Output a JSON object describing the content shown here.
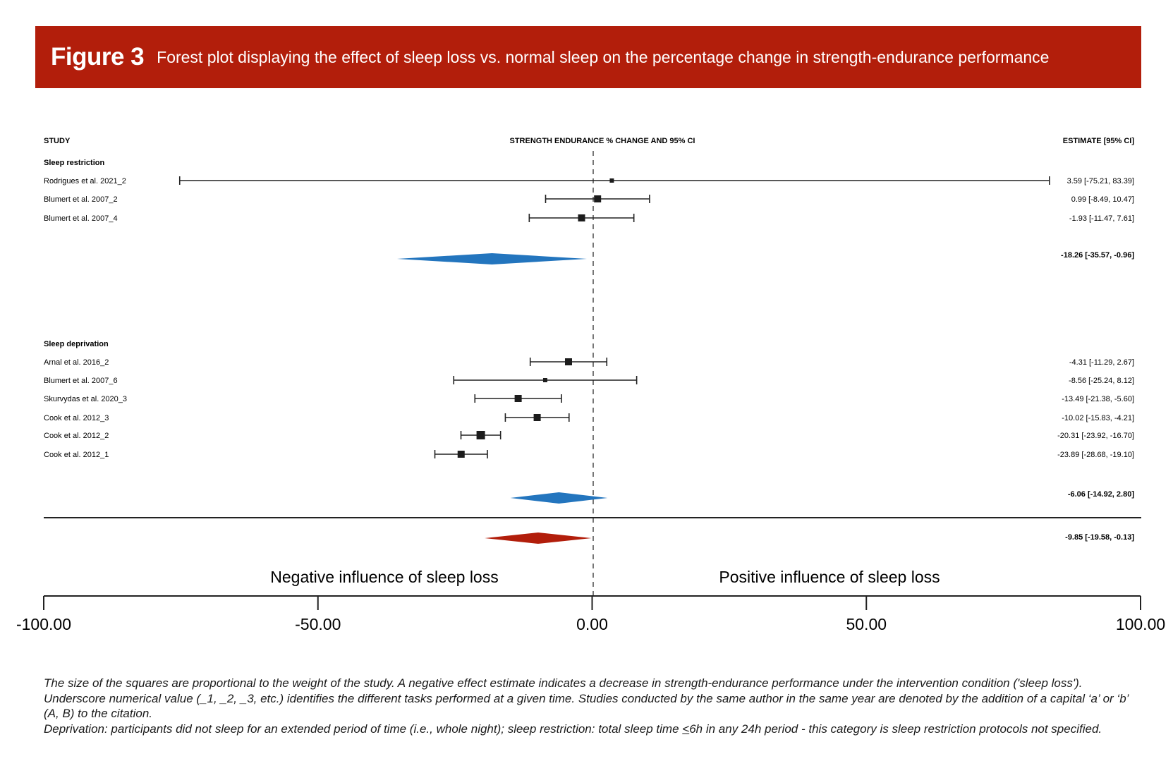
{
  "banner": {
    "figure_label": "Figure 3",
    "caption": "Forest plot displaying the effect of sleep loss vs. normal sleep on the percentage change in strength-endurance performance",
    "color": "#b21e0b"
  },
  "chart_data": {
    "type": "forest",
    "title": "Forest plot displaying the effect of sleep loss vs. normal sleep on the percentage change in strength-endurance performance",
    "column_headers": {
      "study": "STUDY",
      "plot": "STRENGTH ENDURANCE % CHANGE AND 95% CI",
      "estimate": "ESTIMATE [95% CI]"
    },
    "xlim": [
      -100,
      100
    ],
    "xticks": [
      -100,
      -50,
      0,
      50,
      100
    ],
    "xtick_labels": [
      "-100.00",
      "-50.00",
      "0.00",
      "50.00",
      "100.00"
    ],
    "reference_line": 0,
    "side_labels": {
      "left": "Negative influence of sleep loss",
      "right": "Positive influence of sleep loss"
    },
    "groups": [
      {
        "name": "Sleep restriction",
        "studies": [
          {
            "label": "Rodrigues et al. 2021_2",
            "estimate": 3.59,
            "ci_low": -75.21,
            "ci_high": 83.39,
            "text": "3.59 [-75.21, 83.39]",
            "weight": "small"
          },
          {
            "label": "Blumert et al. 2007_2",
            "estimate": 0.99,
            "ci_low": -8.49,
            "ci_high": 10.47,
            "text": "0.99 [-8.49, 10.47]",
            "weight": "medium"
          },
          {
            "label": "Blumert et al. 2007_4",
            "estimate": -1.93,
            "ci_low": -11.47,
            "ci_high": 7.61,
            "text": "-1.93 [-11.47, 7.61]",
            "weight": "medium"
          }
        ],
        "summary": {
          "estimate": -18.26,
          "ci_low": -35.57,
          "ci_high": -0.96,
          "text": "-18.26 [-35.57, -0.96]",
          "color": "#2375be"
        }
      },
      {
        "name": "Sleep deprivation",
        "studies": [
          {
            "label": "Arnal et al. 2016_2",
            "estimate": -4.31,
            "ci_low": -11.29,
            "ci_high": 2.67,
            "text": "-4.31 [-11.29, 2.67]",
            "weight": "medium"
          },
          {
            "label": "Blumert et al. 2007_6",
            "estimate": -8.56,
            "ci_low": -25.24,
            "ci_high": 8.12,
            "text": "-8.56 [-25.24, 8.12]",
            "weight": "small"
          },
          {
            "label": "Skurvydas et al. 2020_3",
            "estimate": -13.49,
            "ci_low": -21.38,
            "ci_high": -5.6,
            "text": "-13.49 [-21.38, -5.60]",
            "weight": "medium"
          },
          {
            "label": "Cook et al. 2012_3",
            "estimate": -10.02,
            "ci_low": -15.83,
            "ci_high": -4.21,
            "text": "-10.02 [-15.83, -4.21]",
            "weight": "medium"
          },
          {
            "label": "Cook et al. 2012_2",
            "estimate": -20.31,
            "ci_low": -23.92,
            "ci_high": -16.7,
            "text": "-20.31 [-23.92, -16.70]",
            "weight": "large"
          },
          {
            "label": "Cook et al. 2012_1",
            "estimate": -23.89,
            "ci_low": -28.68,
            "ci_high": -19.1,
            "text": "-23.89 [-28.68, -19.10]",
            "weight": "medium"
          }
        ],
        "summary": {
          "estimate": -6.06,
          "ci_low": -14.92,
          "ci_high": 2.8,
          "text": "-6.06 [-14.92, 2.80]",
          "color": "#2375be"
        }
      }
    ],
    "overall": {
      "estimate": -9.85,
      "ci_low": -19.58,
      "ci_high": -0.13,
      "text": "-9.85 [-19.58, -0.13]",
      "color": "#b21e0b"
    }
  },
  "footnote": {
    "line1": "The size of the squares are proportional to the weight of the study. A negative effect estimate indicates a decrease in strength-endurance performance under the intervention condition ('sleep loss'). Underscore numerical value (_1, _2, _3, etc.) identifies the different tasks performed at a given time. Studies conducted by the same author in the same year are denoted by the addition of a capital ‘a’ or ‘b’ (A, B) to the citation.",
    "line2_a": "Deprivation: participants did not sleep for an extended period of time (i.e., whole night); sleep restriction: total sleep time ",
    "line2_sym": "<",
    "line2_b": "6h in any 24h period - this category is sleep restriction protocols not specified."
  }
}
